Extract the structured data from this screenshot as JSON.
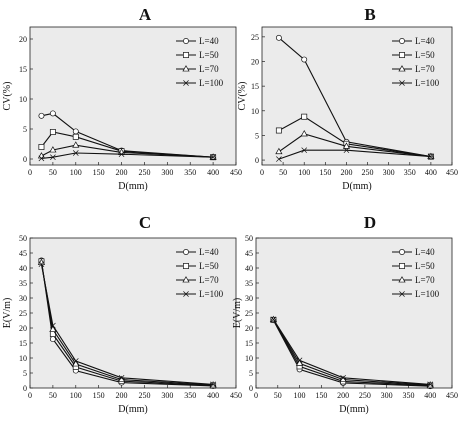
{
  "chart_data": [
    {
      "type": "line",
      "panel_label": "A",
      "xlabel": "D(mm)",
      "ylabel": "CV(%)",
      "xlim": [
        0,
        450
      ],
      "ylim": [
        -1,
        22
      ],
      "xticks": [
        0,
        50,
        100,
        150,
        200,
        250,
        300,
        350,
        400,
        450
      ],
      "yticks": [
        0,
        5,
        10,
        15,
        20
      ],
      "legend_position": "top-right",
      "grid": false,
      "series": [
        {
          "name": "L=40",
          "marker": "circle",
          "x": [
            25,
            50,
            100,
            200,
            400
          ],
          "y": [
            7.2,
            7.6,
            4.6,
            1.4,
            0.3
          ]
        },
        {
          "name": "L=50",
          "marker": "square",
          "x": [
            25,
            50,
            100,
            200,
            400
          ],
          "y": [
            2.0,
            4.5,
            3.7,
            1.3,
            0.3
          ]
        },
        {
          "name": "L=70",
          "marker": "triangle",
          "x": [
            25,
            50,
            100,
            200,
            400
          ],
          "y": [
            0.5,
            1.5,
            2.3,
            1.1,
            0.3
          ]
        },
        {
          "name": "L=100",
          "marker": "cross",
          "x": [
            25,
            50,
            100,
            200,
            400
          ],
          "y": [
            0.1,
            0.3,
            1.0,
            0.8,
            0.3
          ]
        }
      ]
    },
    {
      "type": "line",
      "panel_label": "B",
      "xlabel": "D(mm)",
      "ylabel": "CV(%)",
      "xlim": [
        0,
        450
      ],
      "ylim": [
        -1,
        27
      ],
      "xticks": [
        0,
        50,
        100,
        150,
        200,
        250,
        300,
        350,
        400,
        450
      ],
      "yticks": [
        0,
        5,
        10,
        15,
        20,
        25
      ],
      "legend_position": "top-right",
      "grid": false,
      "series": [
        {
          "name": "L=40",
          "marker": "circle",
          "x": [
            40,
            100,
            200,
            400
          ],
          "y": [
            24.8,
            20.4,
            3.7,
            0.7
          ]
        },
        {
          "name": "L=50",
          "marker": "square",
          "x": [
            40,
            100,
            200,
            400
          ],
          "y": [
            6.0,
            8.8,
            3.3,
            0.7
          ]
        },
        {
          "name": "L=70",
          "marker": "triangle",
          "x": [
            40,
            100,
            200,
            400
          ],
          "y": [
            1.7,
            5.3,
            2.8,
            0.7
          ]
        },
        {
          "name": "L=100",
          "marker": "cross",
          "x": [
            40,
            100,
            200,
            400
          ],
          "y": [
            0.2,
            2.0,
            2.0,
            0.7
          ]
        }
      ]
    },
    {
      "type": "line",
      "panel_label": "C",
      "xlabel": "D(mm)",
      "ylabel": "E(V/m)",
      "xlim": [
        0,
        450
      ],
      "ylim": [
        0,
        50
      ],
      "xticks": [
        0,
        50,
        100,
        150,
        200,
        250,
        300,
        350,
        400,
        450
      ],
      "yticks": [
        0,
        5,
        10,
        15,
        20,
        25,
        30,
        35,
        40,
        45,
        50
      ],
      "legend_position": "top-right",
      "grid": false,
      "series": [
        {
          "name": "L=40",
          "marker": "circle",
          "x": [
            25,
            50,
            100,
            200,
            400
          ],
          "y": [
            42.5,
            16.3,
            5.8,
            1.8,
            0.7
          ]
        },
        {
          "name": "L=50",
          "marker": "square",
          "x": [
            25,
            50,
            100,
            200,
            400
          ],
          "y": [
            42.2,
            18.0,
            7.0,
            2.3,
            0.8
          ]
        },
        {
          "name": "L=70",
          "marker": "triangle",
          "x": [
            25,
            50,
            100,
            200,
            400
          ],
          "y": [
            41.8,
            19.5,
            8.0,
            2.8,
            1.0
          ]
        },
        {
          "name": "L=100",
          "marker": "cross",
          "x": [
            25,
            50,
            100,
            200,
            400
          ],
          "y": [
            41.3,
            20.8,
            9.0,
            3.4,
            1.2
          ]
        }
      ]
    },
    {
      "type": "line",
      "panel_label": "D",
      "xlabel": "D(mm)",
      "ylabel": "E(V/m)",
      "xlim": [
        0,
        450
      ],
      "ylim": [
        0,
        50
      ],
      "xticks": [
        0,
        50,
        100,
        150,
        200,
        250,
        300,
        350,
        400,
        450
      ],
      "yticks": [
        0,
        5,
        10,
        15,
        20,
        25,
        30,
        35,
        40,
        45,
        50
      ],
      "legend_position": "top-right",
      "grid": false,
      "series": [
        {
          "name": "L=40",
          "marker": "circle",
          "x": [
            40,
            100,
            200,
            400
          ],
          "y": [
            22.6,
            6.2,
            1.7,
            0.6
          ]
        },
        {
          "name": "L=50",
          "marker": "square",
          "x": [
            40,
            100,
            200,
            400
          ],
          "y": [
            22.7,
            7.2,
            2.2,
            0.8
          ]
        },
        {
          "name": "L=70",
          "marker": "triangle",
          "x": [
            40,
            100,
            200,
            400
          ],
          "y": [
            22.8,
            8.2,
            2.8,
            1.0
          ]
        },
        {
          "name": "L=100",
          "marker": "cross",
          "x": [
            40,
            100,
            200,
            400
          ],
          "y": [
            22.9,
            9.2,
            3.4,
            1.2
          ]
        }
      ]
    }
  ]
}
